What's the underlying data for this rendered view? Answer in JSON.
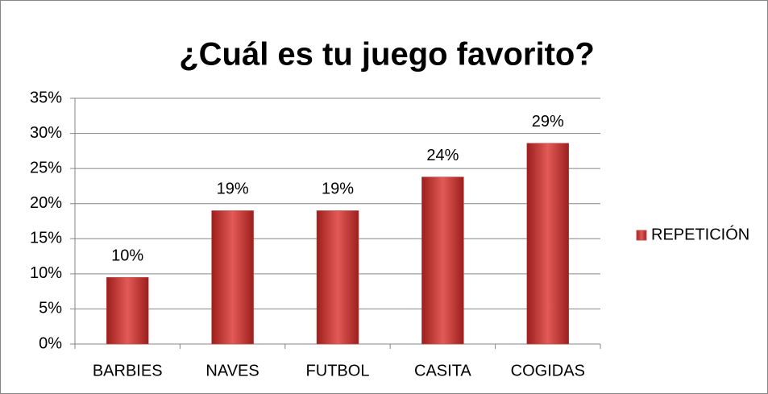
{
  "chart_data": {
    "type": "bar",
    "title": "¿Cuál es tu juego favorito?",
    "categories": [
      "BARBIES",
      "NAVES",
      "FUTBOL",
      "CASITA",
      "COGIDAS"
    ],
    "series": [
      {
        "name": "REPETICIÓN",
        "color": "#c0504d",
        "values": [
          9.5,
          19.0,
          19.0,
          23.8,
          28.6
        ],
        "value_labels": [
          "10%",
          "19%",
          "19%",
          "24%",
          "29%"
        ]
      }
    ],
    "ylim": [
      0,
      35
    ],
    "yticks": [
      {
        "value": 0,
        "label": "0%"
      },
      {
        "value": 5,
        "label": "5%"
      },
      {
        "value": 10,
        "label": "10%"
      },
      {
        "value": 15,
        "label": "15%"
      },
      {
        "value": 20,
        "label": "20%"
      },
      {
        "value": 25,
        "label": "25%"
      },
      {
        "value": 30,
        "label": "30%"
      },
      {
        "value": 35,
        "label": "35%"
      }
    ],
    "grid": true,
    "legend": "right"
  }
}
